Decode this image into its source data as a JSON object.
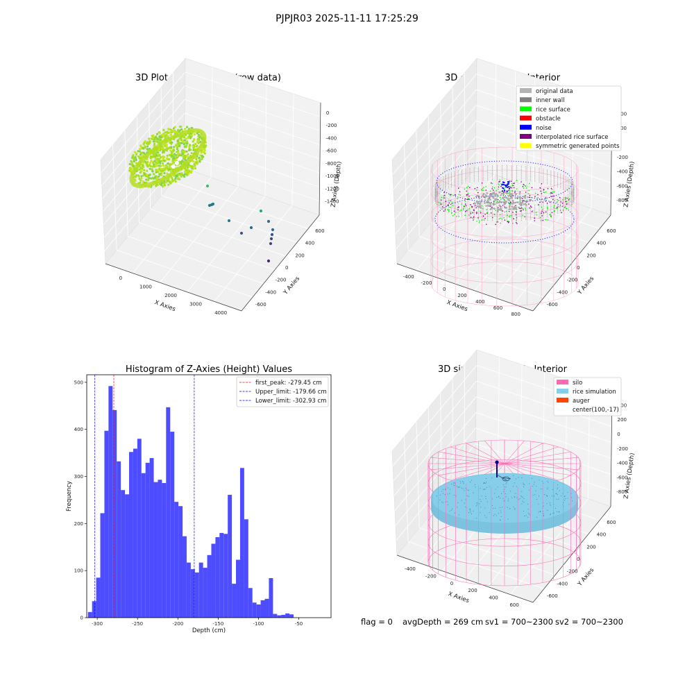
{
  "figure": {
    "suptitle": "PJPJR03 2025-11-11 17:25:29",
    "footer": {
      "flag": "flag = 0",
      "avg_depth": "avgDepth = 269 cm",
      "sv1": "sv1 = 700~2300",
      "sv2": "sv2 = 700~2300"
    }
  },
  "colors": {
    "rice_surface": "#00ff00",
    "silo_wire": "#ff69b4",
    "rice_sim": "#87ceeb",
    "noise": "#0000ff",
    "hist_bar": "#4d4dff",
    "auger": "#ff4500"
  },
  "chart_data": [
    {
      "type": "scatter3d",
      "title": "3D Plot of Silo Interior(row data)",
      "xlabel": "X Axies",
      "ylabel": "Y Axies",
      "zlabel": "Z Axies (Depth)",
      "xticks": [
        "0",
        "1000",
        "2000",
        "3000",
        "4000"
      ],
      "yticks": [
        "-600",
        "-400",
        "-200",
        "0",
        "200",
        "400",
        "600"
      ],
      "zticks": [
        "0",
        "-200",
        "-400",
        "-600",
        "-800",
        "-1000",
        "-1200",
        "-1400"
      ],
      "colormap": "viridis"
    },
    {
      "type": "scatter3d",
      "title": "3D classify of Silo Interior",
      "xlabel": "X Axies",
      "ylabel": "Y Axies",
      "zlabel": "Z Axies (Depth)",
      "xticks": [
        "-400",
        "-200",
        "0",
        "200",
        "400",
        "600",
        "800"
      ],
      "yticks": [
        "-600",
        "-400",
        "-200",
        "0",
        "200",
        "400",
        "600"
      ],
      "zticks": [
        "400",
        "200",
        "0",
        "-200",
        "-400",
        "-600",
        "-800"
      ],
      "legend_position": "top-right",
      "legend": [
        {
          "label": "original data",
          "color": "#b3b3b3"
        },
        {
          "label": "inner wall",
          "color": "#808080"
        },
        {
          "label": "rice surface",
          "color": "#00ff00"
        },
        {
          "label": "obstacle",
          "color": "#ff0000"
        },
        {
          "label": "noise",
          "color": "#0000ff"
        },
        {
          "label": "interpolated rice surface",
          "color": "#800080"
        },
        {
          "label": "symmetric generated points",
          "color": "#ffff00"
        }
      ]
    },
    {
      "type": "bar",
      "title": "Histogram of Z-Axies (Height) Values",
      "xlabel": "Depth (cm)",
      "ylabel": "Frequency",
      "xlim": [
        -313,
        -10
      ],
      "ylim": [
        0,
        516
      ],
      "xticks": [
        -300,
        -250,
        -200,
        -150,
        -100,
        -50
      ],
      "yticks": [
        0,
        100,
        200,
        300,
        400,
        500
      ],
      "bin_start": -311.5,
      "bin_width": 5.1,
      "values": [
        12,
        35,
        85,
        222,
        397,
        492,
        441,
        332,
        271,
        262,
        352,
        359,
        380,
        307,
        329,
        339,
        288,
        293,
        286,
        447,
        395,
        246,
        237,
        173,
        117,
        103,
        96,
        117,
        106,
        133,
        157,
        171,
        180,
        178,
        261,
        72,
        123,
        318,
        209,
        63,
        32,
        28,
        37,
        40,
        84,
        8,
        5,
        6,
        9,
        7
      ],
      "vlines": [
        {
          "label": "first_peak: -279.45 cm",
          "value": -279.45,
          "color": "#ff0000"
        },
        {
          "label": "Upper_limit: -179.66 cm",
          "value": -179.66,
          "color": "#0000ff"
        },
        {
          "label": "Lower_limit: -302.93 cm",
          "value": -302.93,
          "color": "#0000ff"
        }
      ],
      "legend_position": "top-right"
    },
    {
      "type": "surface3d",
      "title": "3D simulation of Silo Interior",
      "xlabel": "X Axies",
      "ylabel": "Y Axies",
      "zlabel": "Z Axies (Depth)",
      "xticks": [
        "-400",
        "-200",
        "0",
        "200",
        "400",
        "600"
      ],
      "yticks": [
        "-600",
        "-400",
        "-200",
        "0",
        "200",
        "400",
        "600"
      ],
      "zticks": [
        "400",
        "200",
        "0",
        "-200",
        "-400",
        "-600",
        "-800"
      ],
      "legend_position": "top-right",
      "legend": [
        {
          "label": "silo",
          "color": "#ff69b4"
        },
        {
          "label": "rice simulation",
          "color": "#87ceeb"
        },
        {
          "label": "auger",
          "color": "#ff4500"
        },
        {
          "label": "center(100,-17)",
          "color": ""
        }
      ]
    }
  ]
}
